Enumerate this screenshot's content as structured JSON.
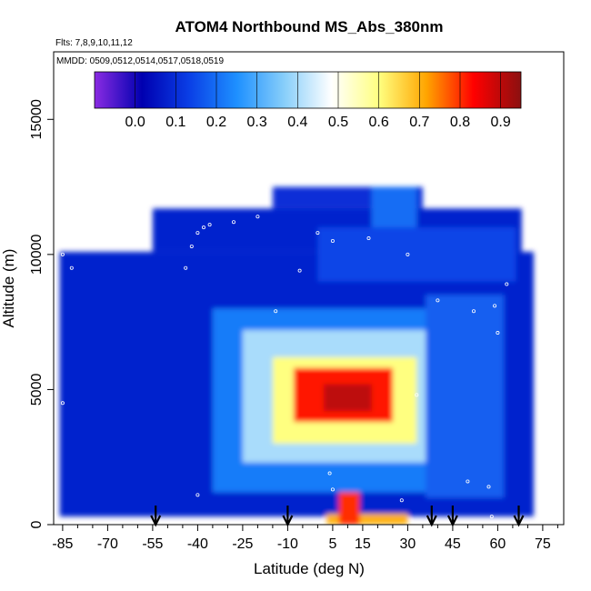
{
  "chart_data": {
    "type": "heatmap",
    "title": "ATOM4 Northbound MS_Abs_380nm",
    "subtitle_flights": "Flts: 7,8,9,10,11,12",
    "subtitle_dates": "MMDD: 0509,0512,0514,0517,0518,0519",
    "xlabel": "Latitude (deg N)",
    "ylabel": "Altitude (m)",
    "xlim": [
      -88,
      82
    ],
    "ylim": [
      0,
      17500
    ],
    "xticks": [
      -85,
      -70,
      -55,
      -40,
      -25,
      -10,
      5,
      15,
      30,
      45,
      60,
      75
    ],
    "yticks": [
      0,
      5000,
      10000,
      15000
    ],
    "colorbar": {
      "ticks": [
        "0.0",
        "0.1",
        "0.2",
        "0.3",
        "0.4",
        "0.5",
        "0.6",
        "0.7",
        "0.8",
        "0.9"
      ],
      "range": [
        -0.1,
        0.95
      ],
      "colors": [
        "#8a2be2",
        "#0000b0",
        "#0a3fe6",
        "#1e90ff",
        "#87cefa",
        "#ffffff",
        "#ffff80",
        "#ffa500",
        "#ff0000",
        "#8b1010"
      ]
    },
    "arrows_latitude": [
      -54,
      -10,
      38,
      45,
      67
    ],
    "fields": [
      {
        "name": "background",
        "lat": [
          -86,
          72
        ],
        "alt": [
          300,
          10100
        ],
        "value": 0.08
      },
      {
        "name": "upper-band",
        "lat": [
          -55,
          68
        ],
        "alt": [
          10100,
          11700
        ],
        "value": 0.08
      },
      {
        "name": "upper-band-east",
        "lat": [
          0,
          66
        ],
        "alt": [
          9000,
          11000
        ],
        "value": 0.14
      },
      {
        "name": "high-cap",
        "lat": [
          -15,
          35
        ],
        "alt": [
          11700,
          12500
        ],
        "value": 0.1
      },
      {
        "name": "high-cap-core",
        "lat": [
          18,
          33
        ],
        "alt": [
          11000,
          12500
        ],
        "value": 0.2
      },
      {
        "name": "wide-plume",
        "lat": [
          -35,
          62
        ],
        "alt": [
          1200,
          8000
        ],
        "value": 0.22
      },
      {
        "name": "mid-plume",
        "lat": [
          -25,
          40
        ],
        "alt": [
          2300,
          7200
        ],
        "value": 0.4
      },
      {
        "name": "inner-plume",
        "lat": [
          -15,
          33
        ],
        "alt": [
          3000,
          6200
        ],
        "value": 0.6
      },
      {
        "name": "core",
        "lat": [
          -8,
          25
        ],
        "alt": [
          3800,
          5800
        ],
        "value": 0.82
      },
      {
        "name": "hot-core",
        "lat": [
          2,
          18
        ],
        "alt": [
          4200,
          5200
        ],
        "value": 0.9
      },
      {
        "name": "surface-streak",
        "lat": [
          3,
          30
        ],
        "alt": [
          0,
          400
        ],
        "value": 0.7
      },
      {
        "name": "surface-hot",
        "lat": [
          7,
          14
        ],
        "alt": [
          0,
          1200
        ],
        "value": 0.8
      },
      {
        "name": "east-column",
        "lat": [
          36,
          62
        ],
        "alt": [
          1000,
          8500
        ],
        "value": 0.18
      }
    ],
    "flight_points": [
      {
        "lat": -85,
        "alt": 10000
      },
      {
        "lat": -82,
        "alt": 9500
      },
      {
        "lat": -85,
        "alt": 4500
      },
      {
        "lat": -66,
        "alt": 10800
      },
      {
        "lat": -62,
        "alt": 11300
      },
      {
        "lat": -44,
        "alt": 9500
      },
      {
        "lat": -42,
        "alt": 10300
      },
      {
        "lat": -40,
        "alt": 10800
      },
      {
        "lat": -38,
        "alt": 11000
      },
      {
        "lat": -36,
        "alt": 11100
      },
      {
        "lat": -28,
        "alt": 11200
      },
      {
        "lat": -20,
        "alt": 11400
      },
      {
        "lat": -6,
        "alt": 9400
      },
      {
        "lat": 0,
        "alt": 10800
      },
      {
        "lat": 5,
        "alt": 10500
      },
      {
        "lat": 17,
        "alt": 10600
      },
      {
        "lat": 30,
        "alt": 10000
      },
      {
        "lat": 40,
        "alt": 8300
      },
      {
        "lat": 52,
        "alt": 7900
      },
      {
        "lat": 59,
        "alt": 8100
      },
      {
        "lat": 60,
        "alt": 7100
      },
      {
        "lat": 63,
        "alt": 8900
      },
      {
        "lat": 71,
        "alt": 11200
      },
      {
        "lat": -14,
        "alt": 7900
      },
      {
        "lat": 33,
        "alt": 4800
      },
      {
        "lat": 4,
        "alt": 1900
      },
      {
        "lat": 5,
        "alt": 1300
      },
      {
        "lat": 28,
        "alt": 900
      },
      {
        "lat": 50,
        "alt": 1600
      },
      {
        "lat": 57,
        "alt": 1400
      },
      {
        "lat": -40,
        "alt": 1100
      },
      {
        "lat": 31,
        "alt": 12900
      },
      {
        "lat": 45,
        "alt": 100
      },
      {
        "lat": 58,
        "alt": 300
      }
    ]
  }
}
